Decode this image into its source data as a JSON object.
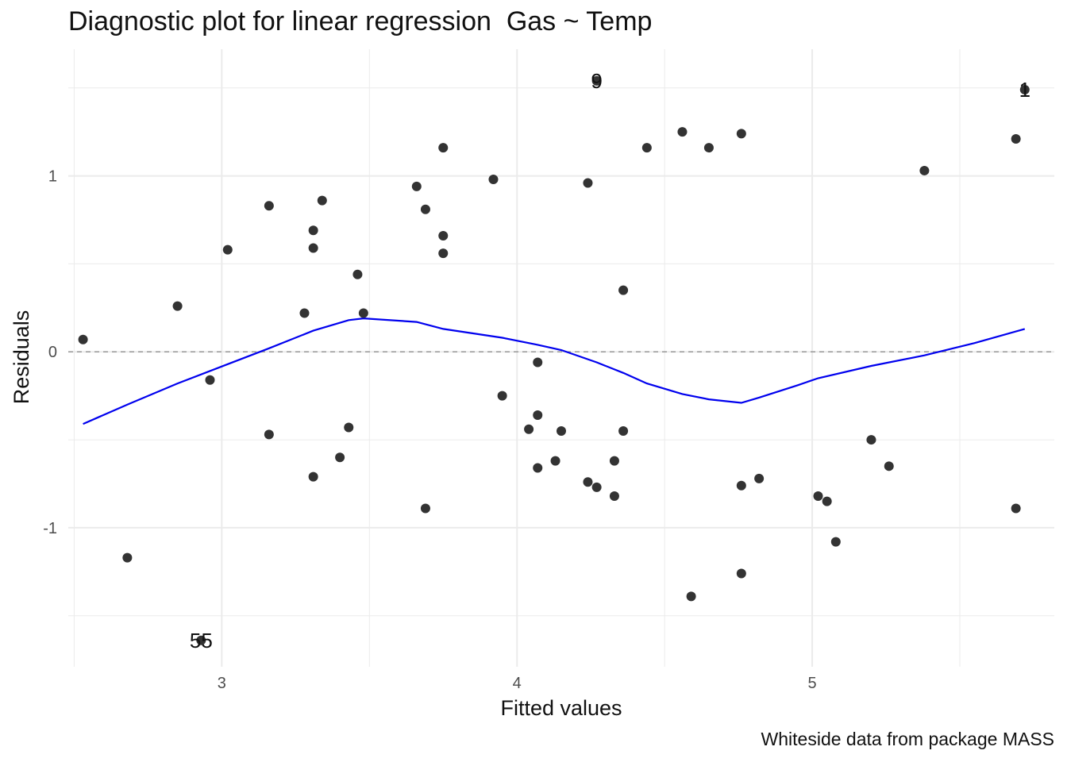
{
  "chart_data": {
    "type": "scatter",
    "title": "Diagnostic plot for linear regression  Gas ~ Temp",
    "caption": "Whiteside data from package MASS",
    "xlabel": "Fitted values",
    "ylabel": "Residuals",
    "xlim": [
      2.48,
      5.82
    ],
    "ylim": [
      -1.79,
      1.72
    ],
    "xticks": [
      3,
      4,
      5
    ],
    "xtick_labels": [
      "3",
      "4",
      "5"
    ],
    "yticks": [
      -1,
      0,
      1
    ],
    "ytick_labels": [
      "-1",
      "0",
      "1"
    ],
    "grid": true,
    "reference_line": {
      "y": 0,
      "style": "dashed",
      "color": "#999999"
    },
    "colors": {
      "points": "#333333",
      "smooth": "#0000ee",
      "grid": "#ebebeb"
    },
    "points": [
      {
        "x": 2.53,
        "y": 0.07
      },
      {
        "x": 2.68,
        "y": -1.17
      },
      {
        "x": 2.85,
        "y": 0.26
      },
      {
        "x": 2.96,
        "y": -0.16
      },
      {
        "x": 3.02,
        "y": 0.58
      },
      {
        "x": 3.16,
        "y": 0.83
      },
      {
        "x": 3.16,
        "y": -0.47
      },
      {
        "x": 3.28,
        "y": 0.22
      },
      {
        "x": 3.31,
        "y": 0.69
      },
      {
        "x": 3.31,
        "y": 0.59
      },
      {
        "x": 3.31,
        "y": -0.71
      },
      {
        "x": 3.34,
        "y": 0.86
      },
      {
        "x": 3.4,
        "y": -0.6
      },
      {
        "x": 3.43,
        "y": -0.43
      },
      {
        "x": 3.46,
        "y": 0.44
      },
      {
        "x": 3.48,
        "y": 0.22
      },
      {
        "x": 3.66,
        "y": 0.94
      },
      {
        "x": 3.69,
        "y": 0.81
      },
      {
        "x": 3.69,
        "y": -0.89
      },
      {
        "x": 3.75,
        "y": 1.16
      },
      {
        "x": 3.75,
        "y": 0.66
      },
      {
        "x": 3.75,
        "y": 0.56
      },
      {
        "x": 3.92,
        "y": 0.98
      },
      {
        "x": 3.95,
        "y": -0.25
      },
      {
        "x": 4.04,
        "y": -0.44
      },
      {
        "x": 4.07,
        "y": -0.06
      },
      {
        "x": 4.07,
        "y": -0.36
      },
      {
        "x": 4.07,
        "y": -0.66
      },
      {
        "x": 4.13,
        "y": -0.62
      },
      {
        "x": 4.15,
        "y": -0.45
      },
      {
        "x": 4.24,
        "y": 0.96
      },
      {
        "x": 4.24,
        "y": -0.74
      },
      {
        "x": 4.27,
        "y": -0.77
      },
      {
        "x": 4.33,
        "y": -0.62
      },
      {
        "x": 4.33,
        "y": -0.82
      },
      {
        "x": 4.36,
        "y": 0.35
      },
      {
        "x": 4.36,
        "y": -0.45
      },
      {
        "x": 4.44,
        "y": 1.16
      },
      {
        "x": 4.56,
        "y": 1.25
      },
      {
        "x": 4.59,
        "y": -1.39
      },
      {
        "x": 4.65,
        "y": 1.16
      },
      {
        "x": 4.76,
        "y": 1.24
      },
      {
        "x": 4.76,
        "y": -0.76
      },
      {
        "x": 4.76,
        "y": -1.26
      },
      {
        "x": 4.82,
        "y": -0.72
      },
      {
        "x": 5.02,
        "y": -0.82
      },
      {
        "x": 5.05,
        "y": -0.85
      },
      {
        "x": 5.08,
        "y": -1.08
      },
      {
        "x": 5.2,
        "y": -0.5
      },
      {
        "x": 5.26,
        "y": -0.65
      },
      {
        "x": 5.38,
        "y": 1.03
      },
      {
        "x": 5.69,
        "y": 1.21
      },
      {
        "x": 5.69,
        "y": -0.89
      },
      {
        "x": 5.72,
        "y": 1.49
      },
      {
        "x": 4.27,
        "y": 1.54
      },
      {
        "x": 2.93,
        "y": -1.64
      }
    ],
    "labeled_points": [
      {
        "label": "9",
        "x": 4.27,
        "y": 1.54
      },
      {
        "label": "1",
        "x": 5.72,
        "y": 1.49
      },
      {
        "label": "55",
        "x": 2.93,
        "y": -1.64
      }
    ],
    "smooth_line": {
      "x": [
        2.53,
        2.68,
        2.85,
        3.02,
        3.16,
        3.31,
        3.43,
        3.48,
        3.66,
        3.75,
        3.95,
        4.07,
        4.15,
        4.27,
        4.36,
        4.44,
        4.56,
        4.65,
        4.76,
        4.82,
        4.95,
        5.02,
        5.2,
        5.38,
        5.55,
        5.72
      ],
      "y": [
        -0.41,
        -0.3,
        -0.18,
        -0.07,
        0.02,
        0.12,
        0.18,
        0.19,
        0.17,
        0.13,
        0.08,
        0.04,
        0.01,
        -0.06,
        -0.12,
        -0.18,
        -0.24,
        -0.27,
        -0.29,
        -0.26,
        -0.19,
        -0.15,
        -0.08,
        -0.02,
        0.05,
        0.13
      ]
    }
  }
}
